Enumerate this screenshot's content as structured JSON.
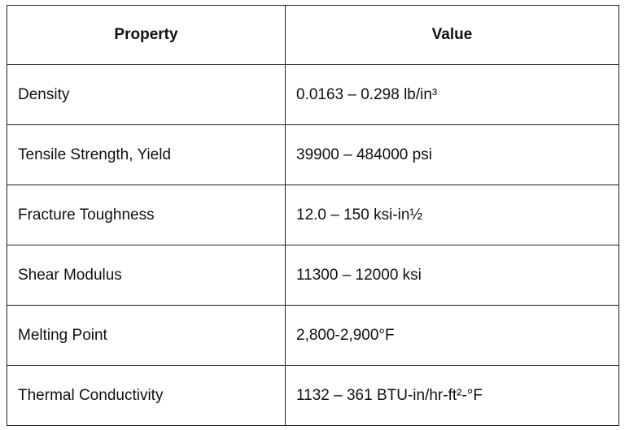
{
  "table": {
    "headers": [
      "Property",
      "Value"
    ],
    "rows": [
      {
        "property": "Density",
        "value": "0.0163 – 0.298 lb/in³"
      },
      {
        "property": "Tensile Strength, Yield",
        "value": "39900 – 484000 psi"
      },
      {
        "property": "Fracture Toughness",
        "value": "12.0 – 150 ksi-in½"
      },
      {
        "property": "Shear Modulus",
        "value": "11300 – 12000 ksi"
      },
      {
        "property": "Melting Point",
        "value": "2,800-2,900°F"
      },
      {
        "property": "Thermal Conductivity",
        "value": "1132 – 361 BTU-in/hr-ft²-°F"
      }
    ]
  }
}
